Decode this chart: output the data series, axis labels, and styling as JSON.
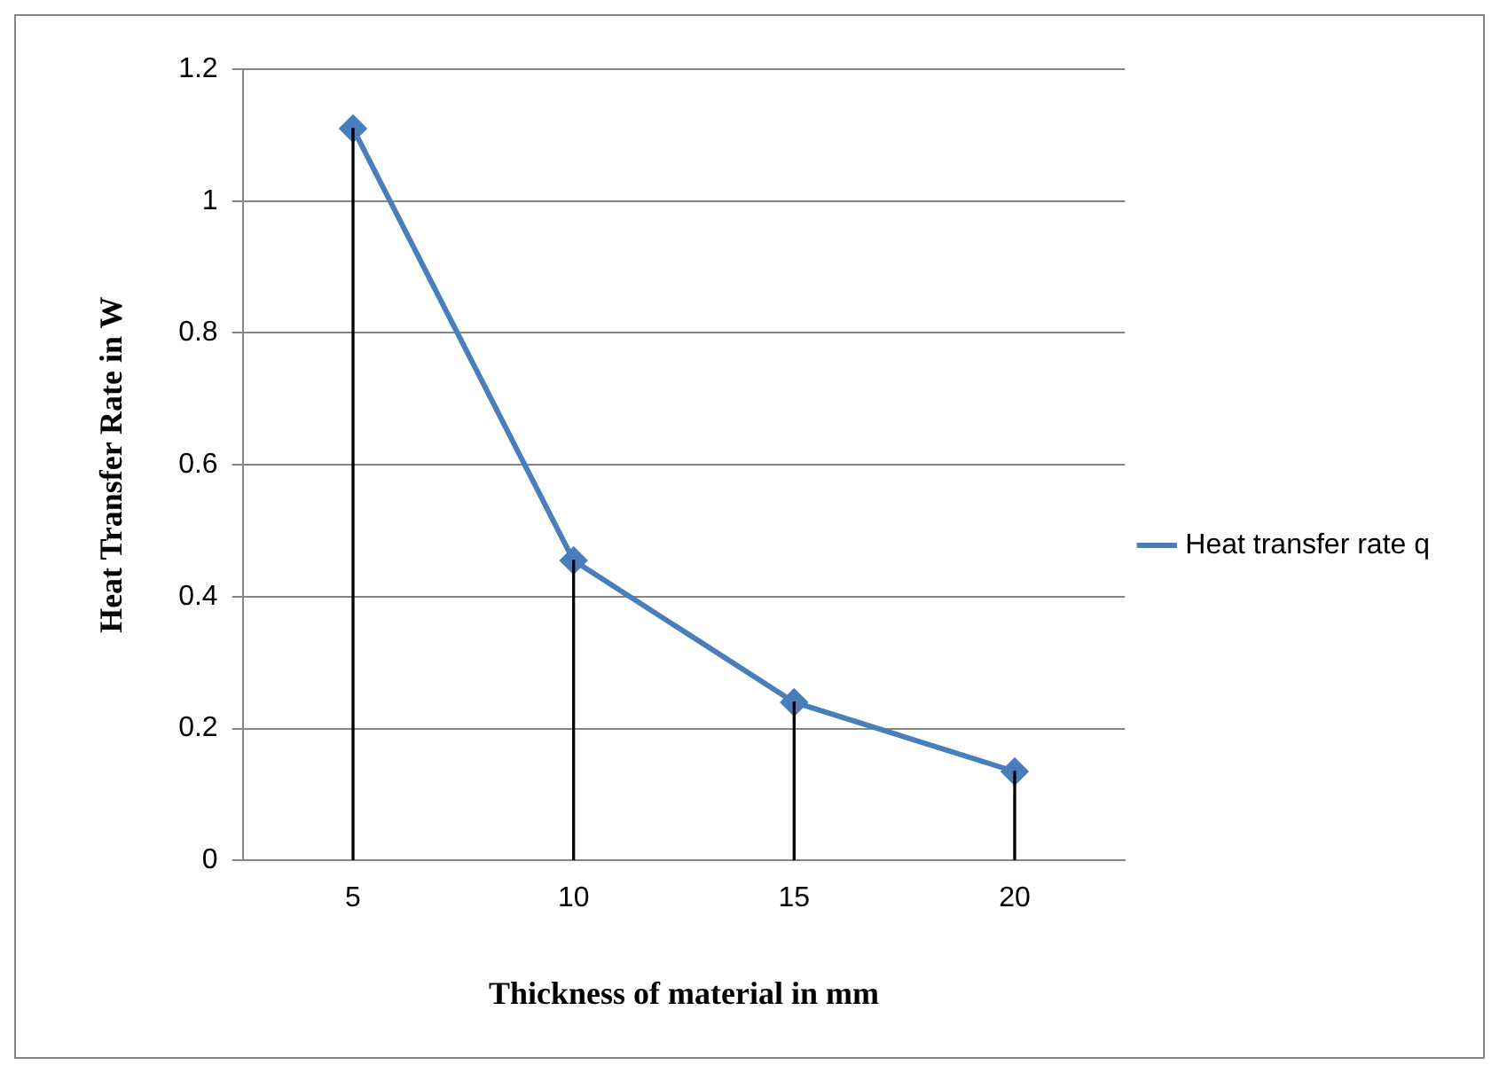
{
  "chart_data": {
    "type": "line",
    "xlabel": "Thickness of material in mm",
    "ylabel": "Heat Transfer Rate in W",
    "categories": [
      "5",
      "10",
      "15",
      "20"
    ],
    "series": [
      {
        "name": "Heat transfer rate q",
        "color": "#4a7ebb",
        "values": [
          1.11,
          0.455,
          0.24,
          0.135
        ]
      },
      {
        "type": "bar",
        "color": "#000000",
        "values": [
          1.11,
          0.455,
          0.24,
          0.135
        ]
      }
    ],
    "ylim": [
      0,
      1.2
    ],
    "yticks": [
      0,
      0.2,
      0.4,
      0.6,
      0.8,
      1,
      1.2
    ],
    "grid": "y",
    "legend": "right",
    "marker": "diamond",
    "line_style": "solid"
  }
}
